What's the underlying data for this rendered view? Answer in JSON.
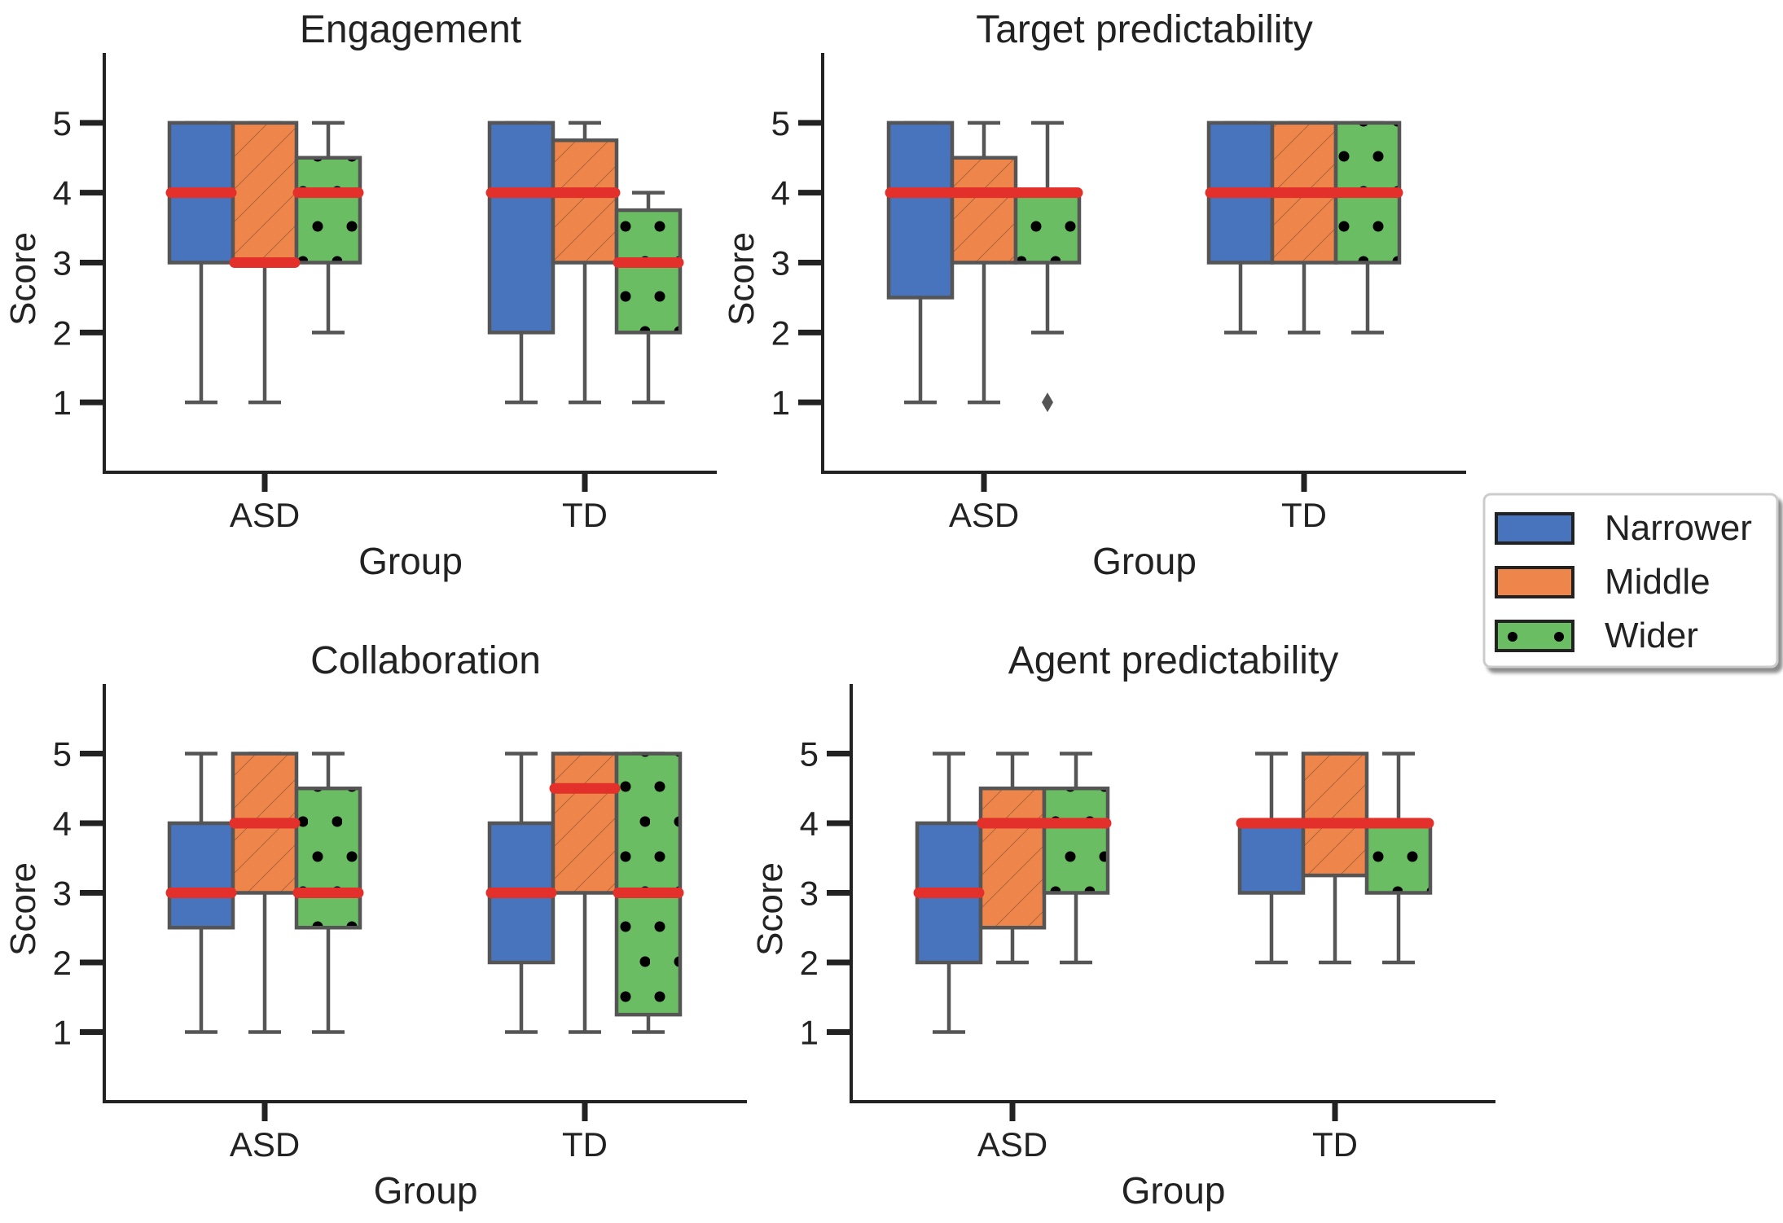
{
  "figure": {
    "type": "grouped-boxplot-grid",
    "legend_position": "right, between rows"
  },
  "legend": {
    "entries": [
      {
        "label": "Narrower",
        "color": "#4873BD",
        "hatch": "none"
      },
      {
        "label": "Middle",
        "color": "#EE854A",
        "hatch": "diagonal"
      },
      {
        "label": "Wider",
        "color": "#6ABD62",
        "hatch": "dots"
      }
    ]
  },
  "colors": {
    "median": "#E3302A",
    "box_edge": "#555555",
    "axis": "#222222"
  },
  "chart_data": [
    {
      "type": "boxplot",
      "title": "Engagement",
      "xlabel": "Group",
      "ylabel": "Score",
      "categories": [
        "ASD",
        "TD"
      ],
      "ylim": [
        0,
        6
      ],
      "yticks": [
        1,
        2,
        3,
        4,
        5
      ],
      "series": [
        {
          "name": "Narrower",
          "boxes": [
            {
              "min": 1,
              "q1": 3,
              "median": 4,
              "q3": 5,
              "max": 5,
              "outliers": []
            },
            {
              "min": 1,
              "q1": 2,
              "median": 4,
              "q3": 5,
              "max": 5,
              "outliers": []
            }
          ]
        },
        {
          "name": "Middle",
          "boxes": [
            {
              "min": 1,
              "q1": 3,
              "median": 3,
              "q3": 5,
              "max": 5,
              "outliers": []
            },
            {
              "min": 1,
              "q1": 3,
              "median": 4,
              "q3": 4.75,
              "max": 5,
              "outliers": []
            }
          ]
        },
        {
          "name": "Wider",
          "boxes": [
            {
              "min": 2,
              "q1": 3,
              "median": 4,
              "q3": 4.5,
              "max": 5,
              "outliers": []
            },
            {
              "min": 1,
              "q1": 2,
              "median": 3,
              "q3": 3.75,
              "max": 4,
              "outliers": []
            }
          ]
        }
      ]
    },
    {
      "type": "boxplot",
      "title": "Target predictability",
      "xlabel": "Group",
      "ylabel": "Score",
      "categories": [
        "ASD",
        "TD"
      ],
      "ylim": [
        0,
        6
      ],
      "yticks": [
        1,
        2,
        3,
        4,
        5
      ],
      "series": [
        {
          "name": "Narrower",
          "boxes": [
            {
              "min": 1,
              "q1": 2.5,
              "median": 4,
              "q3": 5,
              "max": 5,
              "outliers": []
            },
            {
              "min": 2,
              "q1": 3,
              "median": 4,
              "q3": 5,
              "max": 5,
              "outliers": []
            }
          ]
        },
        {
          "name": "Middle",
          "boxes": [
            {
              "min": 1,
              "q1": 3,
              "median": 4,
              "q3": 4.5,
              "max": 5,
              "outliers": []
            },
            {
              "min": 2,
              "q1": 3,
              "median": 4,
              "q3": 5,
              "max": 5,
              "outliers": []
            }
          ]
        },
        {
          "name": "Wider",
          "boxes": [
            {
              "min": 2,
              "q1": 3,
              "median": 4,
              "q3": 4,
              "max": 5,
              "outliers": [
                1
              ]
            },
            {
              "min": 2,
              "q1": 3,
              "median": 4,
              "q3": 5,
              "max": 5,
              "outliers": []
            }
          ]
        }
      ]
    },
    {
      "type": "boxplot",
      "title": "Collaboration",
      "xlabel": "Group",
      "ylabel": "Score",
      "categories": [
        "ASD",
        "TD"
      ],
      "ylim": [
        0,
        6
      ],
      "yticks": [
        1,
        2,
        3,
        4,
        5
      ],
      "series": [
        {
          "name": "Narrower",
          "boxes": [
            {
              "min": 1,
              "q1": 2.5,
              "median": 3,
              "q3": 4,
              "max": 5,
              "outliers": []
            },
            {
              "min": 1,
              "q1": 2,
              "median": 3,
              "q3": 4,
              "max": 5,
              "outliers": []
            }
          ]
        },
        {
          "name": "Middle",
          "boxes": [
            {
              "min": 1,
              "q1": 3,
              "median": 4,
              "q3": 5,
              "max": 5,
              "outliers": []
            },
            {
              "min": 1,
              "q1": 3,
              "median": 4.5,
              "q3": 5,
              "max": 5,
              "outliers": []
            }
          ]
        },
        {
          "name": "Wider",
          "boxes": [
            {
              "min": 1,
              "q1": 2.5,
              "median": 3,
              "q3": 4.5,
              "max": 5,
              "outliers": []
            },
            {
              "min": 1,
              "q1": 1.25,
              "median": 3,
              "q3": 5,
              "max": 5,
              "outliers": []
            }
          ]
        }
      ]
    },
    {
      "type": "boxplot",
      "title": "Agent predictability",
      "xlabel": "Group",
      "ylabel": "Score",
      "categories": [
        "ASD",
        "TD"
      ],
      "ylim": [
        0,
        6
      ],
      "yticks": [
        1,
        2,
        3,
        4,
        5
      ],
      "series": [
        {
          "name": "Narrower",
          "boxes": [
            {
              "min": 1,
              "q1": 2,
              "median": 3,
              "q3": 4,
              "max": 5,
              "outliers": []
            },
            {
              "min": 2,
              "q1": 3,
              "median": 4,
              "q3": 4,
              "max": 5,
              "outliers": []
            }
          ]
        },
        {
          "name": "Middle",
          "boxes": [
            {
              "min": 2,
              "q1": 2.5,
              "median": 4,
              "q3": 4.5,
              "max": 5,
              "outliers": []
            },
            {
              "min": 2,
              "q1": 3.25,
              "median": 4,
              "q3": 5,
              "max": 5,
              "outliers": []
            }
          ]
        },
        {
          "name": "Wider",
          "boxes": [
            {
              "min": 2,
              "q1": 3,
              "median": 4,
              "q3": 4.5,
              "max": 5,
              "outliers": []
            },
            {
              "min": 2,
              "q1": 3,
              "median": 4,
              "q3": 4,
              "max": 5,
              "outliers": []
            }
          ]
        }
      ]
    }
  ]
}
